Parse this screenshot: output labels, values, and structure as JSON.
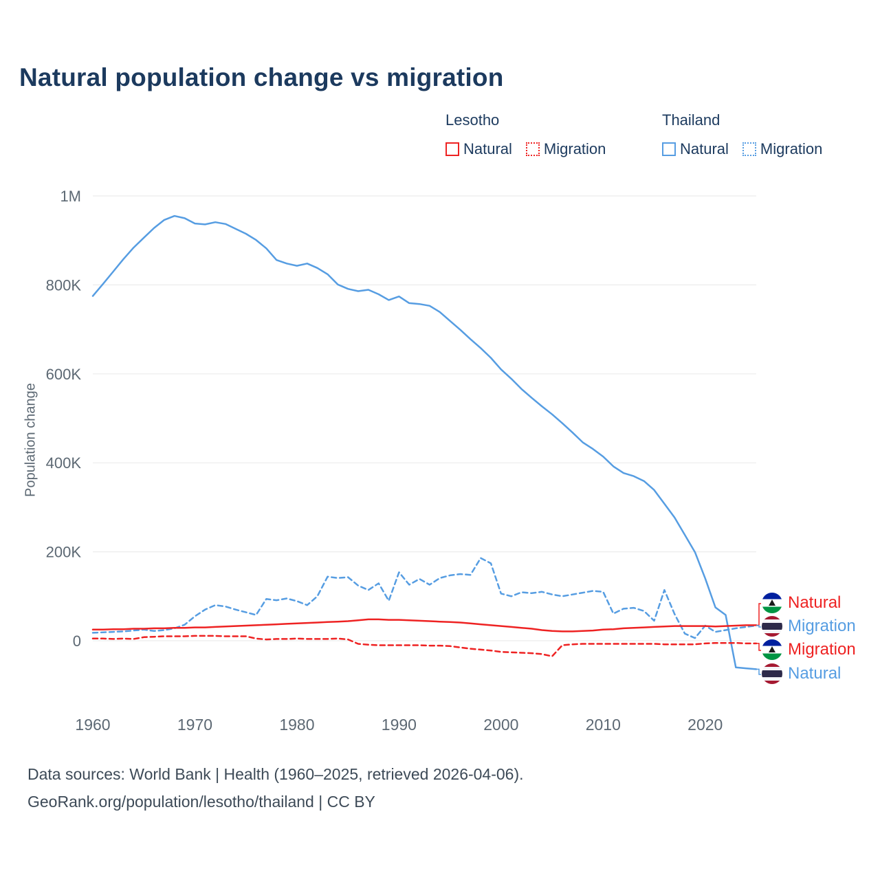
{
  "title": "Natural population change vs migration",
  "colors": {
    "lesotho": "#ee2222",
    "thailand": "#569de2",
    "title": "#1c3a5e",
    "axis": "#5c6873",
    "grid": "#ececec"
  },
  "legend": {
    "groups": [
      {
        "name": "Lesotho",
        "items": [
          {
            "label": "Natural",
            "style": "solid"
          },
          {
            "label": "Migration",
            "style": "dotted"
          }
        ]
      },
      {
        "name": "Thailand",
        "items": [
          {
            "label": "Natural",
            "style": "solid"
          },
          {
            "label": "Migration",
            "style": "dotted"
          }
        ]
      }
    ]
  },
  "chart_data": {
    "type": "line",
    "title": "Natural population change vs migration",
    "xlabel": "",
    "ylabel": "Population change",
    "units": "thousands of people",
    "grid": "horizontal",
    "legend_position": "top-right",
    "ylim": [
      -100,
      1050
    ],
    "xticks": [
      1960,
      1970,
      1980,
      1990,
      2000,
      2010,
      2020
    ],
    "yticks": [
      {
        "value": 0,
        "label": "0"
      },
      {
        "value": 200,
        "label": "200K"
      },
      {
        "value": 400,
        "label": "400K"
      },
      {
        "value": 600,
        "label": "600K"
      },
      {
        "value": 800,
        "label": "800K"
      },
      {
        "value": 1000,
        "label": "1M"
      }
    ],
    "x": [
      1960,
      1961,
      1962,
      1963,
      1964,
      1965,
      1966,
      1967,
      1968,
      1969,
      1970,
      1971,
      1972,
      1973,
      1974,
      1975,
      1976,
      1977,
      1978,
      1979,
      1980,
      1981,
      1982,
      1983,
      1984,
      1985,
      1986,
      1987,
      1988,
      1989,
      1990,
      1991,
      1992,
      1993,
      1994,
      1995,
      1996,
      1997,
      1998,
      1999,
      2000,
      2001,
      2002,
      2003,
      2004,
      2005,
      2006,
      2007,
      2008,
      2009,
      2010,
      2011,
      2012,
      2013,
      2014,
      2015,
      2016,
      2017,
      2018,
      2019,
      2020,
      2021,
      2022,
      2023,
      2024,
      2025
    ],
    "series": [
      {
        "name": "Thailand Natural",
        "country": "Thailand",
        "metric": "Natural",
        "color": "#569de2",
        "dash": "solid",
        "values": [
          775,
          802,
          830,
          858,
          884,
          906,
          928,
          946,
          955,
          950,
          938,
          936,
          941,
          937,
          926,
          915,
          901,
          882,
          856,
          848,
          843,
          848,
          838,
          824,
          801,
          791,
          786,
          789,
          779,
          766,
          774,
          759,
          757,
          753,
          739,
          719,
          699,
          678,
          658,
          636,
          610,
          589,
          566,
          546,
          527,
          509,
          489,
          468,
          446,
          431,
          414,
          392,
          377,
          370,
          359,
          339,
          308,
          277,
          238,
          199,
          140,
          75,
          58,
          -60,
          -62,
          -64
        ]
      },
      {
        "name": "Thailand Migration",
        "country": "Thailand",
        "metric": "Migration",
        "color": "#569de2",
        "dash": "dashed",
        "values": [
          18,
          19,
          20,
          21,
          23,
          25,
          22,
          24,
          28,
          36,
          55,
          70,
          80,
          77,
          70,
          64,
          58,
          94,
          91,
          95,
          89,
          80,
          100,
          144,
          141,
          143,
          124,
          114,
          129,
          90,
          154,
          126,
          139,
          126,
          141,
          147,
          150,
          148,
          186,
          174,
          106,
          100,
          109,
          107,
          110,
          104,
          100,
          104,
          108,
          112,
          110,
          61,
          72,
          74,
          67,
          45,
          114,
          60,
          16,
          6,
          34,
          20,
          24,
          28,
          31,
          34
        ]
      },
      {
        "name": "Lesotho Natural",
        "country": "Lesotho",
        "metric": "Natural",
        "color": "#ee2222",
        "dash": "solid",
        "values": [
          25,
          25,
          26,
          26,
          27,
          27,
          28,
          28,
          29,
          29,
          30,
          30,
          31,
          32,
          33,
          34,
          35,
          36,
          37,
          38,
          39,
          40,
          41,
          42,
          43,
          44,
          46,
          48,
          48,
          47,
          47,
          46,
          45,
          44,
          43,
          42,
          41,
          39,
          37,
          35,
          33,
          31,
          29,
          27,
          24,
          22,
          21,
          21,
          22,
          23,
          25,
          26,
          28,
          29,
          30,
          31,
          32,
          33,
          33,
          33,
          33,
          32,
          33,
          34,
          35,
          35
        ]
      },
      {
        "name": "Lesotho Migration",
        "country": "Lesotho",
        "metric": "Migration",
        "color": "#ee2222",
        "dash": "dashed",
        "values": [
          5,
          5,
          4,
          5,
          4,
          8,
          9,
          10,
          10,
          10,
          11,
          11,
          11,
          10,
          10,
          10,
          5,
          3,
          4,
          4,
          5,
          4,
          4,
          4,
          5,
          3,
          -7,
          -9,
          -10,
          -10,
          -10,
          -10,
          -10,
          -11,
          -11,
          -12,
          -15,
          -18,
          -20,
          -22,
          -25,
          -26,
          -27,
          -28,
          -30,
          -35,
          -10,
          -8,
          -7,
          -7,
          -7,
          -7,
          -7,
          -7,
          -7,
          -7,
          -8,
          -8,
          -8,
          -8,
          -6,
          -5,
          -5,
          -5,
          -6,
          -6
        ]
      }
    ]
  },
  "right_labels": [
    {
      "flag": "lesotho-flag-icon",
      "label": "Natural",
      "series": "Lesotho Natural"
    },
    {
      "flag": "thailand-flag-icon",
      "label": "Migration",
      "series": "Thailand Migration"
    },
    {
      "flag": "lesotho-flag-icon",
      "label": "Migration",
      "series": "Lesotho Migration"
    },
    {
      "flag": "thailand-flag-icon",
      "label": "Natural",
      "series": "Thailand Natural"
    }
  ],
  "footer": {
    "line1": "Data sources: World Bank | Health (1960–2025, retrieved 2026-04-06).",
    "line2": "GeoRank.org/population/lesotho/thailand | CC BY"
  }
}
